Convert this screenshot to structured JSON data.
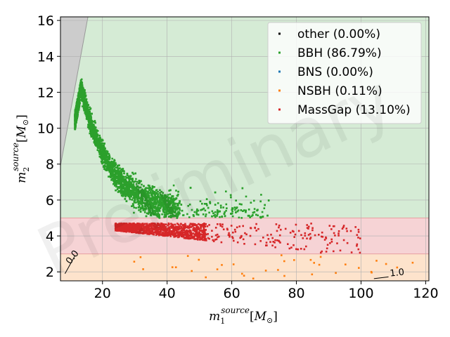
{
  "chart_data": {
    "type": "scatter",
    "title": "",
    "xlabel_base": "m",
    "xlabel_sub": "1",
    "xlabel_sup": "source",
    "xlabel_unit_open": "[",
    "xlabel_unit": "M",
    "xlabel_unit_sub": "⊙",
    "xlabel_unit_close": "]",
    "ylabel_base": "m",
    "ylabel_sub": "2",
    "ylabel_sup": "source",
    "ylabel_unit_open": "[",
    "ylabel_unit": "M",
    "ylabel_unit_sub": "⊙",
    "ylabel_unit_close": "]",
    "xlim": [
      7,
      121
    ],
    "ylim": [
      1.5,
      16.2
    ],
    "xticks": [
      20,
      40,
      60,
      80,
      100,
      120
    ],
    "yticks": [
      2,
      4,
      6,
      8,
      10,
      12,
      14,
      16
    ],
    "grid": true,
    "legend_position": "top-right",
    "watermark": "Preliminary",
    "regions": [
      {
        "name": "BBH",
        "y_from": 5,
        "y_to": 16.2,
        "color": "#d5ebd5"
      },
      {
        "name": "MassGap",
        "y_from": 3,
        "y_to": 5,
        "color": "#f6d3d5"
      },
      {
        "name": "NSBH",
        "y_from": 1.5,
        "y_to": 3,
        "color": "#fde3cc"
      },
      {
        "name": "excluded",
        "color": "#cccccc"
      }
    ],
    "contour_labels": [
      {
        "text": "0.0",
        "x": 10,
        "y": 2.4
      },
      {
        "text": "1.0",
        "x": 109,
        "y": 1.75
      }
    ],
    "series": [
      {
        "name": "other (0.00%)",
        "color": "#000000",
        "count": 0
      },
      {
        "name": "BBH (86.79%)",
        "color": "#2ca02c",
        "count": 4200
      },
      {
        "name": "BNS (0.00%)",
        "color": "#1f77b4",
        "count": 0
      },
      {
        "name": "NSBH (0.11%)",
        "color": "#ff7f0e",
        "count": 35
      },
      {
        "name": "MassGap (13.10%)",
        "color": "#d62728",
        "count": 1300
      }
    ]
  }
}
